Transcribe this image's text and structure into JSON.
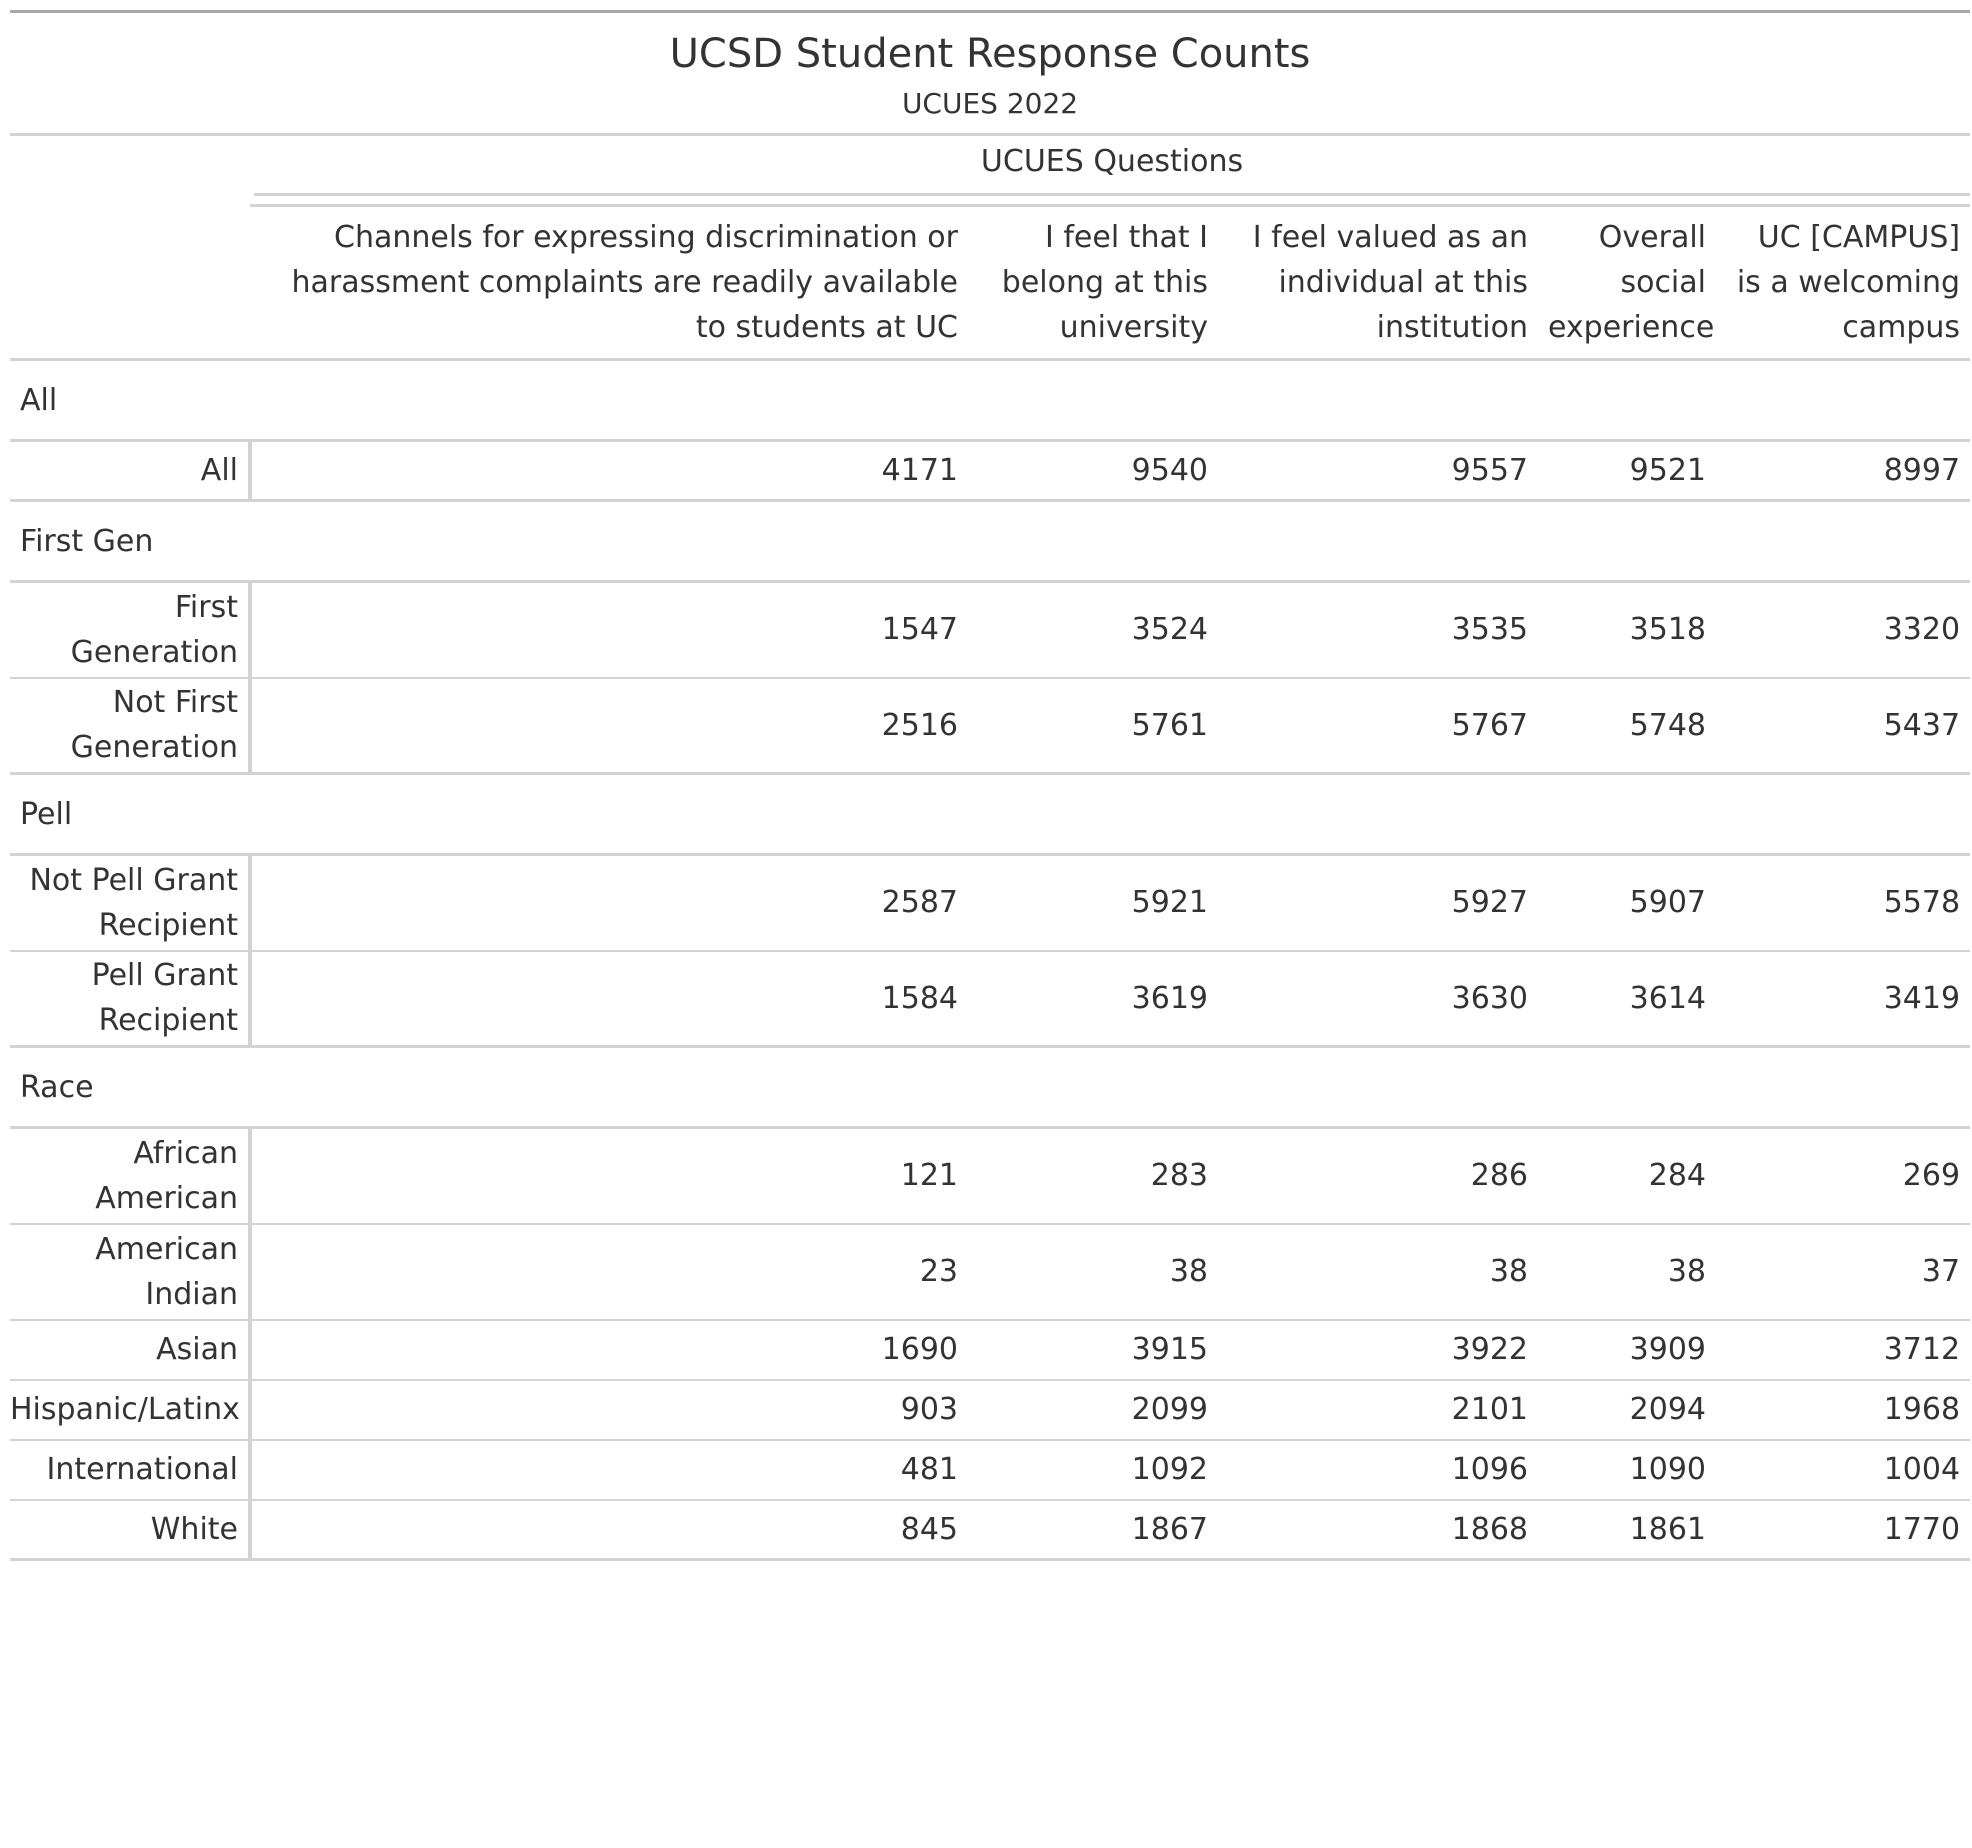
{
  "title": "UCSD Student Response Counts",
  "subtitle": "UCUES 2022",
  "spanner": "UCUES Questions",
  "columns": [
    "Channels for expressing discrimination or harassment complaints are readily available to students at UC",
    "I feel that I belong at this university",
    "I feel valued as an individual at this institution",
    "Overall social experience",
    "UC [CAMPUS] is a welcoming campus"
  ],
  "groups": [
    {
      "label": "All",
      "rows": [
        {
          "label": "All",
          "values": [
            "4171",
            "9540",
            "9557",
            "9521",
            "8997"
          ]
        }
      ]
    },
    {
      "label": "First Gen",
      "rows": [
        {
          "label": "First Generation",
          "values": [
            "1547",
            "3524",
            "3535",
            "3518",
            "3320"
          ]
        },
        {
          "label": "Not First Generation",
          "values": [
            "2516",
            "5761",
            "5767",
            "5748",
            "5437"
          ]
        }
      ]
    },
    {
      "label": "Pell",
      "rows": [
        {
          "label": "Not Pell Grant Recipient",
          "values": [
            "2587",
            "5921",
            "5927",
            "5907",
            "5578"
          ]
        },
        {
          "label": "Pell Grant Recipient",
          "values": [
            "1584",
            "3619",
            "3630",
            "3614",
            "3419"
          ]
        }
      ]
    },
    {
      "label": "Race",
      "rows": [
        {
          "label": "African American",
          "values": [
            "121",
            "283",
            "286",
            "284",
            "269"
          ]
        },
        {
          "label": "American Indian",
          "values": [
            "23",
            "38",
            "38",
            "38",
            "37"
          ]
        },
        {
          "label": "Asian",
          "values": [
            "1690",
            "3915",
            "3922",
            "3909",
            "3712"
          ]
        },
        {
          "label": "Hispanic/Latinx",
          "values": [
            "903",
            "2099",
            "2101",
            "2094",
            "1968"
          ]
        },
        {
          "label": "International",
          "values": [
            "481",
            "1092",
            "1096",
            "1090",
            "1004"
          ]
        },
        {
          "label": "White",
          "values": [
            "845",
            "1867",
            "1868",
            "1861",
            "1770"
          ]
        }
      ]
    }
  ]
}
